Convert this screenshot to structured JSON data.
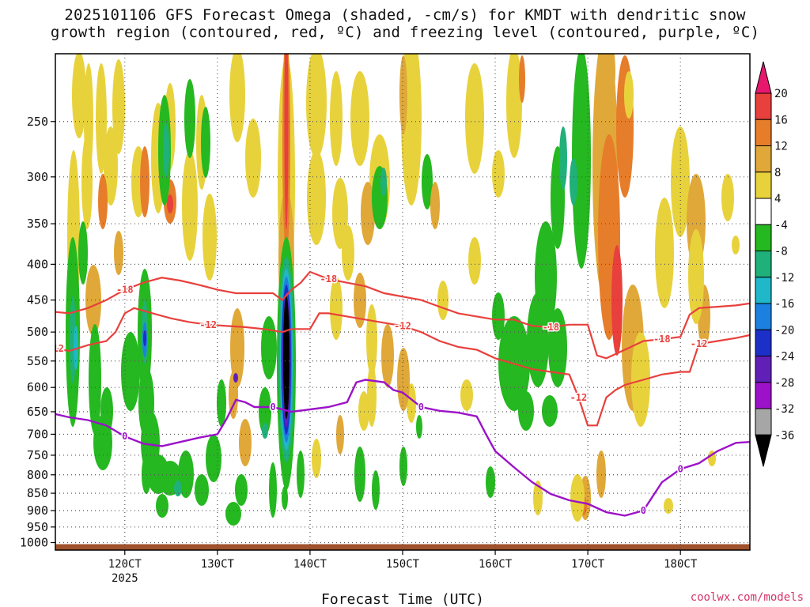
{
  "chart_data": {
    "type": "heatmap",
    "title_lines": [
      "2025101106 GFS Forecast Omega (shaded, -cm/s) for KMDT with dendritic snow",
      "growth region (contoured, red, ºC) and freezing level (contoured, purple, ºC)"
    ],
    "xlabel": "Forecast Time (UTC)",
    "x_ticks": [
      {
        "value": 120,
        "label": "120CT",
        "sublabel": "2025"
      },
      {
        "value": 130,
        "label": "130CT"
      },
      {
        "value": 140,
        "label": "140CT"
      },
      {
        "value": 150,
        "label": "150CT"
      },
      {
        "value": 160,
        "label": "160CT"
      },
      {
        "value": 170,
        "label": "170CT"
      },
      {
        "value": 180,
        "label": "180CT"
      }
    ],
    "xlim": [
      112.5,
      187.5
    ],
    "y_ticks": [
      250,
      300,
      350,
      400,
      450,
      500,
      550,
      600,
      650,
      700,
      750,
      800,
      850,
      900,
      950,
      1000
    ],
    "ylim": [
      200,
      1025
    ],
    "y_scale": "log-pressure",
    "grid": true,
    "colorbar": {
      "labels": [
        "20",
        "16",
        "12",
        "8",
        "4",
        "-4",
        "-8",
        "-12",
        "-16",
        "-20",
        "-24",
        "-28",
        "-32",
        "-36"
      ],
      "colors": [
        "#e8176e",
        "#e8403c",
        "#e67d2a",
        "#e0a838",
        "#e8d23c",
        "#ffffff",
        "#25b820",
        "#20b07a",
        "#20b8c8",
        "#1c80e0",
        "#1c30c8",
        "#6020b8",
        "#9c12c8",
        "#a6a6a6",
        "#000000"
      ]
    },
    "dgz_label": "-12",
    "dgz_label_top": "-18",
    "freezing_label": "0",
    "dgz_top": [
      {
        "x": 112.5,
        "p": 468
      },
      {
        "x": 114,
        "p": 470
      },
      {
        "x": 116,
        "p": 462
      },
      {
        "x": 118,
        "p": 450
      },
      {
        "x": 120,
        "p": 435
      },
      {
        "x": 122,
        "p": 425
      },
      {
        "x": 124,
        "p": 418
      },
      {
        "x": 126,
        "p": 422
      },
      {
        "x": 128,
        "p": 428
      },
      {
        "x": 130,
        "p": 435
      },
      {
        "x": 132,
        "p": 440
      },
      {
        "x": 134,
        "p": 440
      },
      {
        "x": 136,
        "p": 440
      },
      {
        "x": 137,
        "p": 450
      },
      {
        "x": 138,
        "p": 435
      },
      {
        "x": 139,
        "p": 425
      },
      {
        "x": 140,
        "p": 410
      },
      {
        "x": 142,
        "p": 420
      },
      {
        "x": 144,
        "p": 425
      },
      {
        "x": 146,
        "p": 430
      },
      {
        "x": 148,
        "p": 440
      },
      {
        "x": 150,
        "p": 445
      },
      {
        "x": 152,
        "p": 450
      },
      {
        "x": 154,
        "p": 460
      },
      {
        "x": 156,
        "p": 470
      },
      {
        "x": 158,
        "p": 475
      },
      {
        "x": 160,
        "p": 480
      },
      {
        "x": 162,
        "p": 480
      },
      {
        "x": 164,
        "p": 490
      },
      {
        "x": 166,
        "p": 492
      },
      {
        "x": 168,
        "p": 488
      },
      {
        "x": 170,
        "p": 488
      },
      {
        "x": 171,
        "p": 540
      },
      {
        "x": 172,
        "p": 545
      },
      {
        "x": 174,
        "p": 530
      },
      {
        "x": 176,
        "p": 515
      },
      {
        "x": 178,
        "p": 512
      },
      {
        "x": 180,
        "p": 508
      },
      {
        "x": 181,
        "p": 472
      },
      {
        "x": 182,
        "p": 462
      },
      {
        "x": 184,
        "p": 460
      },
      {
        "x": 186,
        "p": 458
      },
      {
        "x": 187.5,
        "p": 455
      }
    ],
    "dgz_bottom": [
      {
        "x": 112.5,
        "p": 528
      },
      {
        "x": 114,
        "p": 532
      },
      {
        "x": 116,
        "p": 522
      },
      {
        "x": 118,
        "p": 515
      },
      {
        "x": 119,
        "p": 500
      },
      {
        "x": 120,
        "p": 470
      },
      {
        "x": 121,
        "p": 462
      },
      {
        "x": 123,
        "p": 470
      },
      {
        "x": 125,
        "p": 478
      },
      {
        "x": 127,
        "p": 484
      },
      {
        "x": 129,
        "p": 488
      },
      {
        "x": 131,
        "p": 490
      },
      {
        "x": 133,
        "p": 492
      },
      {
        "x": 135,
        "p": 495
      },
      {
        "x": 137,
        "p": 500
      },
      {
        "x": 138,
        "p": 495
      },
      {
        "x": 140,
        "p": 495
      },
      {
        "x": 141,
        "p": 470
      },
      {
        "x": 142,
        "p": 470
      },
      {
        "x": 144,
        "p": 475
      },
      {
        "x": 146,
        "p": 480
      },
      {
        "x": 148,
        "p": 485
      },
      {
        "x": 150,
        "p": 490
      },
      {
        "x": 152,
        "p": 500
      },
      {
        "x": 154,
        "p": 515
      },
      {
        "x": 156,
        "p": 525
      },
      {
        "x": 158,
        "p": 530
      },
      {
        "x": 160,
        "p": 545
      },
      {
        "x": 162,
        "p": 555
      },
      {
        "x": 164,
        "p": 565
      },
      {
        "x": 166,
        "p": 570
      },
      {
        "x": 168,
        "p": 575
      },
      {
        "x": 169,
        "p": 620
      },
      {
        "x": 170,
        "p": 680
      },
      {
        "x": 171,
        "p": 680
      },
      {
        "x": 172,
        "p": 620
      },
      {
        "x": 173,
        "p": 605
      },
      {
        "x": 174,
        "p": 595
      },
      {
        "x": 176,
        "p": 585
      },
      {
        "x": 178,
        "p": 575
      },
      {
        "x": 180,
        "p": 570
      },
      {
        "x": 181,
        "p": 570
      },
      {
        "x": 182,
        "p": 520
      },
      {
        "x": 184,
        "p": 515
      },
      {
        "x": 186,
        "p": 510
      },
      {
        "x": 187.5,
        "p": 505
      }
    ],
    "freezing_level": [
      {
        "x": 112.5,
        "p": 655
      },
      {
        "x": 114,
        "p": 662
      },
      {
        "x": 116,
        "p": 668
      },
      {
        "x": 118,
        "p": 680
      },
      {
        "x": 120,
        "p": 705
      },
      {
        "x": 122,
        "p": 722
      },
      {
        "x": 124,
        "p": 728
      },
      {
        "x": 126,
        "p": 718
      },
      {
        "x": 128,
        "p": 708
      },
      {
        "x": 130,
        "p": 700
      },
      {
        "x": 131,
        "p": 665
      },
      {
        "x": 132,
        "p": 625
      },
      {
        "x": 133,
        "p": 630
      },
      {
        "x": 134,
        "p": 640
      },
      {
        "x": 136,
        "p": 640
      },
      {
        "x": 138,
        "p": 650
      },
      {
        "x": 140,
        "p": 645
      },
      {
        "x": 142,
        "p": 640
      },
      {
        "x": 144,
        "p": 630
      },
      {
        "x": 145,
        "p": 590
      },
      {
        "x": 146,
        "p": 585
      },
      {
        "x": 148,
        "p": 590
      },
      {
        "x": 149,
        "p": 605
      },
      {
        "x": 150,
        "p": 610
      },
      {
        "x": 152,
        "p": 640
      },
      {
        "x": 154,
        "p": 648
      },
      {
        "x": 156,
        "p": 652
      },
      {
        "x": 158,
        "p": 660
      },
      {
        "x": 159,
        "p": 700
      },
      {
        "x": 160,
        "p": 740
      },
      {
        "x": 162,
        "p": 780
      },
      {
        "x": 164,
        "p": 820
      },
      {
        "x": 166,
        "p": 852
      },
      {
        "x": 168,
        "p": 870
      },
      {
        "x": 170,
        "p": 880
      },
      {
        "x": 172,
        "p": 905
      },
      {
        "x": 174,
        "p": 915
      },
      {
        "x": 176,
        "p": 900
      },
      {
        "x": 178,
        "p": 820
      },
      {
        "x": 180,
        "p": 785
      },
      {
        "x": 182,
        "p": 770
      },
      {
        "x": 184,
        "p": 740
      },
      {
        "x": 186,
        "p": 720
      },
      {
        "x": 187.5,
        "p": 718
      }
    ]
  },
  "credit": "coolwx.com/models"
}
